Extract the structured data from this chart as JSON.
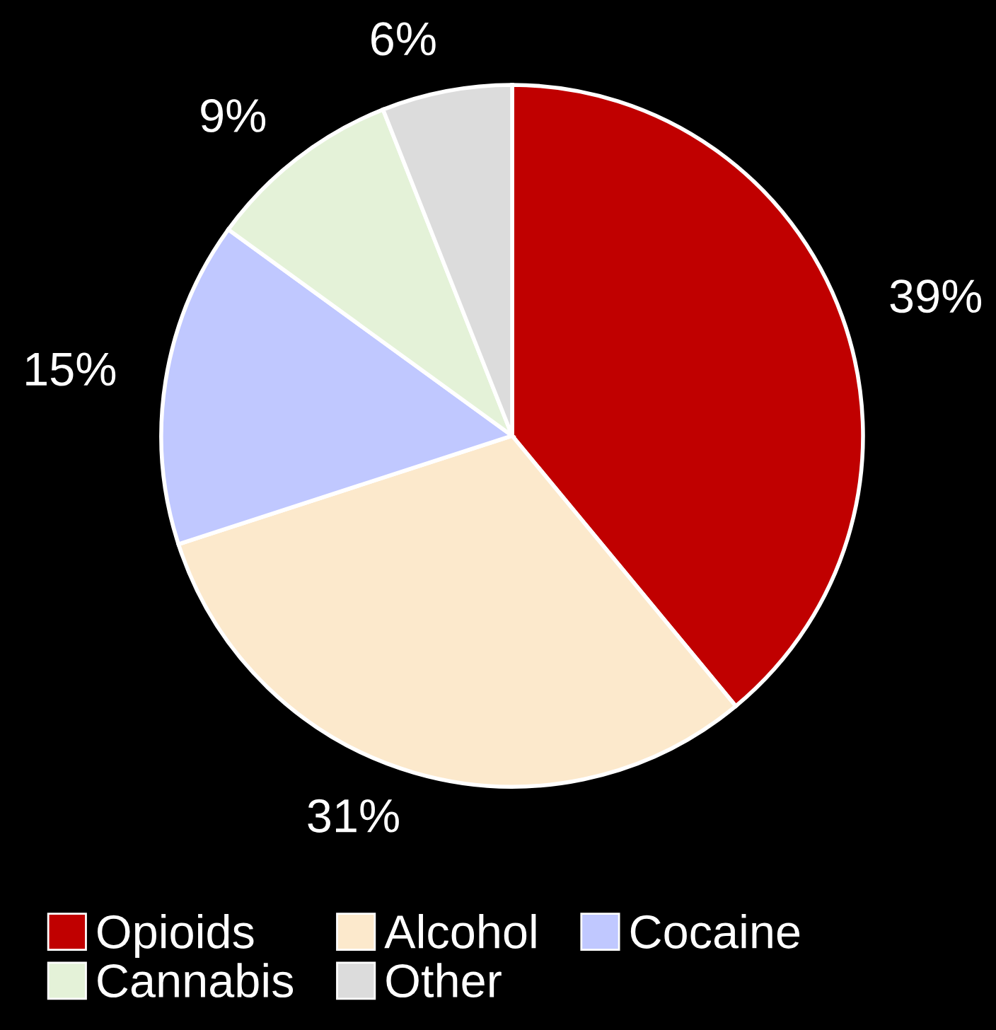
{
  "chart_data": {
    "type": "pie",
    "categories": [
      "Opioids",
      "Alcohol",
      "Cocaine",
      "Cannabis",
      "Other"
    ],
    "values": [
      39,
      31,
      15,
      9,
      6
    ],
    "colors": [
      "#c00000",
      "#fce9cc",
      "#c0c8ff",
      "#e4f2d8",
      "#dcdcdc"
    ],
    "value_labels": [
      "39%",
      "31%",
      "15%",
      "9%",
      "6%"
    ],
    "legend": "bottom"
  }
}
